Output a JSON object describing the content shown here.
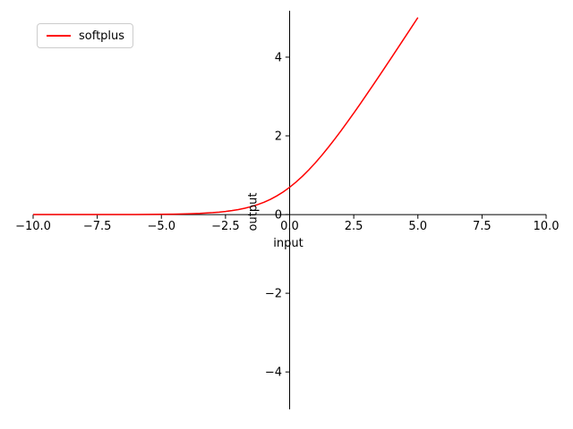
{
  "figure": {
    "background": "#ffffff",
    "axis_color": "#000000",
    "legend_border_color": "#cccccc"
  },
  "chart_data": {
    "type": "line",
    "title": "",
    "xlabel": "input",
    "ylabel": "output",
    "xlim": [
      -10,
      10
    ],
    "ylim": [
      -4.95,
      5.18
    ],
    "grid": false,
    "legend": {
      "position": "upper-left",
      "entries": [
        {
          "label": "softplus",
          "color": "#ff0000"
        }
      ]
    },
    "xticks": {
      "values": [
        -10,
        -7.5,
        -5,
        -2.5,
        0,
        2.5,
        5,
        7.5,
        10
      ],
      "labels": [
        "−10.0",
        "−7.5",
        "−5.0",
        "−2.5",
        "0.0",
        "2.5",
        "5.0",
        "7.5",
        "10.0"
      ]
    },
    "yticks": {
      "values": [
        4,
        2,
        0,
        -2,
        -4
      ],
      "labels": [
        "4",
        "2",
        "0",
        "−2",
        "−4"
      ]
    },
    "series": [
      {
        "name": "softplus",
        "color": "#ff0000",
        "points": [
          [
            -10,
            4.54e-05
          ],
          [
            -9.5,
            7.48e-05
          ],
          [
            -9,
            0.0001234
          ],
          [
            -8.5,
            0.0002035
          ],
          [
            -8,
            0.0003354
          ],
          [
            -7.5,
            0.0005531
          ],
          [
            -7,
            0.0009114
          ],
          [
            -6.5,
            0.0015023
          ],
          [
            -6,
            0.0024757
          ],
          [
            -5.5,
            0.0040791
          ],
          [
            -5,
            0.0067153
          ],
          [
            -4.5,
            0.011048
          ],
          [
            -4,
            0.01815
          ],
          [
            -3.5,
            0.02975
          ],
          [
            -3,
            0.048587
          ],
          [
            -2.75,
            0.061963
          ],
          [
            -2.5,
            0.078889
          ],
          [
            -2.25,
            0.100203
          ],
          [
            -2,
            0.126928
          ],
          [
            -1.75,
            0.160223
          ],
          [
            -1.5,
            0.201413
          ],
          [
            -1.25,
            0.25193
          ],
          [
            -1,
            0.313262
          ],
          [
            -0.75,
            0.386871
          ],
          [
            -0.5,
            0.474077
          ],
          [
            -0.25,
            0.575939
          ],
          [
            0,
            0.693147
          ],
          [
            0.25,
            0.825939
          ],
          [
            0.5,
            0.974077
          ],
          [
            0.75,
            1.136871
          ],
          [
            1,
            1.313262
          ],
          [
            1.25,
            1.50193
          ],
          [
            1.5,
            1.701413
          ],
          [
            1.75,
            1.910223
          ],
          [
            2,
            2.126928
          ],
          [
            2.25,
            2.350203
          ],
          [
            2.5,
            2.578889
          ],
          [
            2.75,
            2.811963
          ],
          [
            3,
            3.048587
          ],
          [
            3.25,
            3.288043
          ],
          [
            3.5,
            3.52975
          ],
          [
            3.75,
            3.773245
          ],
          [
            4,
            4.01815
          ],
          [
            4.25,
            4.264163
          ],
          [
            4.5,
            4.511048
          ],
          [
            4.75,
            4.758615
          ],
          [
            5,
            5.006715
          ]
        ]
      }
    ]
  }
}
